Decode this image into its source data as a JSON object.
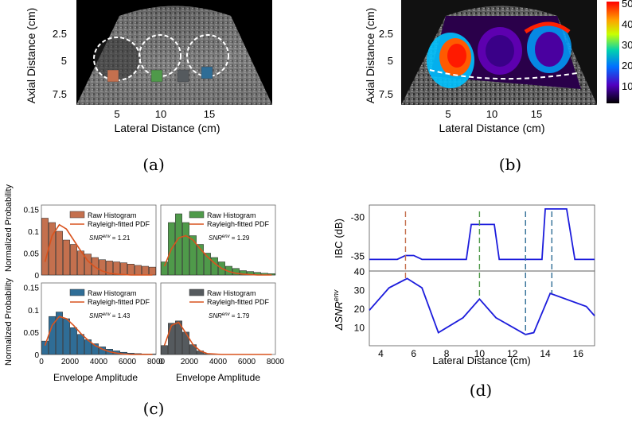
{
  "panels": {
    "a": {
      "label": "(a)",
      "xlabel": "Lateral Distance (cm)",
      "ylabel": "Axial Distance (cm)",
      "xticks": [
        "5",
        "10",
        "15"
      ],
      "yticks": [
        "2.5",
        "5",
        "7.5"
      ]
    },
    "b": {
      "label": "(b)",
      "xlabel": "Lateral Distance (cm)",
      "ylabel": "Axial Distance (cm)",
      "xticks": [
        "5",
        "10",
        "15"
      ],
      "yticks": [
        "2.5",
        "5",
        "7.5"
      ],
      "colorbar_ticks": [
        "50",
        "40",
        "30",
        "20",
        "10"
      ]
    },
    "c": {
      "label": "(c)",
      "ylabel": "Normalized Probability",
      "xlabel": "Envelope Amplitude",
      "legend": [
        "Raw Histogram",
        "Rayleigh-fitted PDF"
      ],
      "snr_prefix": "SNR",
      "snr_sup": "env",
      "yticks": [
        "0",
        "0.05",
        "0.1",
        "0.15"
      ],
      "xticks": [
        "0",
        "2000",
        "4000",
        "6000",
        "8000"
      ]
    },
    "d": {
      "label": "(d)",
      "xlabel": "Lateral Distance (cm)",
      "top_ylabel": "IBC (dB)",
      "bottom_ylabel_prefix": "ΔSNR",
      "bottom_ylabel_sup": "env",
      "top_yticks": [
        "-30",
        "-35"
      ],
      "bottom_yticks": [
        "40",
        "30",
        "20",
        "10"
      ],
      "xticks": [
        "4",
        "6",
        "8",
        "10",
        "12",
        "14",
        "16"
      ]
    }
  },
  "colors": {
    "roi_1": "#c4704e",
    "roi_2": "#4f9a4a",
    "roi_3": "#555a5e",
    "roi_4": "#2f6d96",
    "fit_line": "#d9531e",
    "line_blue": "#1c1cdc"
  },
  "chart_data": [
    {
      "type": "bar",
      "panel": "c-top-left",
      "title": "",
      "snr": "1.21",
      "x": [
        250,
        750,
        1250,
        1750,
        2250,
        2750,
        3250,
        3750,
        4250,
        4750,
        5250,
        5750,
        6250,
        6750,
        7250,
        7750
      ],
      "series": [
        {
          "name": "Raw Histogram",
          "values": [
            0.13,
            0.12,
            0.1,
            0.08,
            0.07,
            0.055,
            0.048,
            0.04,
            0.035,
            0.032,
            0.03,
            0.028,
            0.025,
            0.022,
            0.02,
            0.018
          ]
        },
        {
          "name": "Rayleigh-fitted PDF",
          "values": [
            0.03,
            0.09,
            0.115,
            0.105,
            0.08,
            0.055,
            0.032,
            0.018,
            0.009,
            0.004,
            0.002,
            0.001,
            0,
            0,
            0,
            0
          ]
        }
      ],
      "xlim": [
        0,
        8000
      ],
      "ylim": [
        0,
        0.16
      ]
    },
    {
      "type": "bar",
      "panel": "c-top-right",
      "title": "",
      "snr": "1.29",
      "x": [
        250,
        750,
        1250,
        1750,
        2250,
        2750,
        3250,
        3750,
        4250,
        4750,
        5250,
        5750,
        6250,
        6750,
        7250,
        7750
      ],
      "series": [
        {
          "name": "Raw Histogram",
          "values": [
            0.03,
            0.12,
            0.14,
            0.12,
            0.09,
            0.07,
            0.05,
            0.04,
            0.03,
            0.02,
            0.015,
            0.01,
            0.008,
            0.006,
            0.004,
            0.003
          ]
        },
        {
          "name": "Rayleigh-fitted PDF",
          "values": [
            0.02,
            0.06,
            0.085,
            0.09,
            0.08,
            0.06,
            0.042,
            0.027,
            0.015,
            0.008,
            0.004,
            0.002,
            0.001,
            0,
            0,
            0
          ]
        }
      ],
      "xlim": [
        0,
        8000
      ],
      "ylim": [
        0,
        0.16
      ]
    },
    {
      "type": "bar",
      "panel": "c-bottom-left",
      "title": "",
      "snr": "1.43",
      "x": [
        250,
        750,
        1250,
        1750,
        2250,
        2750,
        3250,
        3750,
        4250,
        4750,
        5250,
        5750,
        6250,
        6750,
        7250,
        7750
      ],
      "series": [
        {
          "name": "Raw Histogram",
          "values": [
            0.03,
            0.085,
            0.095,
            0.08,
            0.06,
            0.045,
            0.033,
            0.024,
            0.017,
            0.012,
            0.008,
            0.005,
            0.003,
            0.002,
            0.001,
            0.001
          ]
        },
        {
          "name": "Rayleigh-fitted PDF",
          "values": [
            0.02,
            0.065,
            0.085,
            0.08,
            0.065,
            0.047,
            0.032,
            0.02,
            0.012,
            0.006,
            0.003,
            0.001,
            0,
            0,
            0,
            0
          ]
        }
      ],
      "xlim": [
        0,
        8000
      ],
      "ylim": [
        0,
        0.16
      ]
    },
    {
      "type": "bar",
      "panel": "c-bottom-right",
      "title": "",
      "snr": "1.79",
      "x": [
        250,
        750,
        1250,
        1750,
        2250,
        2750,
        3250,
        3750,
        4250,
        4750,
        5250,
        5750,
        6250,
        6750,
        7250,
        7750
      ],
      "series": [
        {
          "name": "Raw Histogram",
          "values": [
            0.02,
            0.07,
            0.075,
            0.05,
            0.022,
            0.008,
            0.002,
            0.001,
            0,
            0,
            0,
            0,
            0,
            0,
            0,
            0
          ]
        },
        {
          "name": "Rayleigh-fitted PDF",
          "values": [
            0.02,
            0.065,
            0.072,
            0.048,
            0.022,
            0.008,
            0.002,
            0.001,
            0,
            0,
            0,
            0,
            0,
            0,
            0,
            0
          ]
        }
      ],
      "xlim": [
        0,
        8000
      ],
      "ylim": [
        0,
        0.16
      ]
    },
    {
      "type": "line",
      "panel": "d-top",
      "ylabel": "IBC (dB)",
      "x": [
        3.3,
        5,
        5.5,
        6,
        6.5,
        9,
        9.2,
        9.5,
        10,
        10.9,
        11.2,
        12.5,
        13.8,
        14,
        15.3,
        15.8,
        17
      ],
      "series": [
        {
          "values": [
            -35.5,
            -35.5,
            -35,
            -35,
            -35.5,
            -35.5,
            -35.5,
            -31,
            -31,
            -31,
            -35.5,
            -35.5,
            -35.5,
            -29,
            -29,
            -35.5,
            -35.5
          ]
        }
      ],
      "xlim": [
        3.3,
        17
      ],
      "ylim": [
        -37,
        -28.5
      ]
    },
    {
      "type": "line",
      "panel": "d-bottom",
      "x": [
        3.3,
        4.5,
        5.6,
        6.5,
        7.5,
        9,
        10,
        11,
        12.8,
        13.3,
        14.3,
        16.5,
        17
      ],
      "series": [
        {
          "values": [
            19,
            31,
            36,
            31,
            7,
            15,
            25,
            15,
            6,
            7,
            28,
            21,
            16
          ]
        }
      ],
      "markers": [
        5.5,
        10,
        12.8,
        14.4
      ],
      "xlim": [
        3.3,
        17
      ],
      "ylim": [
        0,
        40
      ]
    }
  ]
}
